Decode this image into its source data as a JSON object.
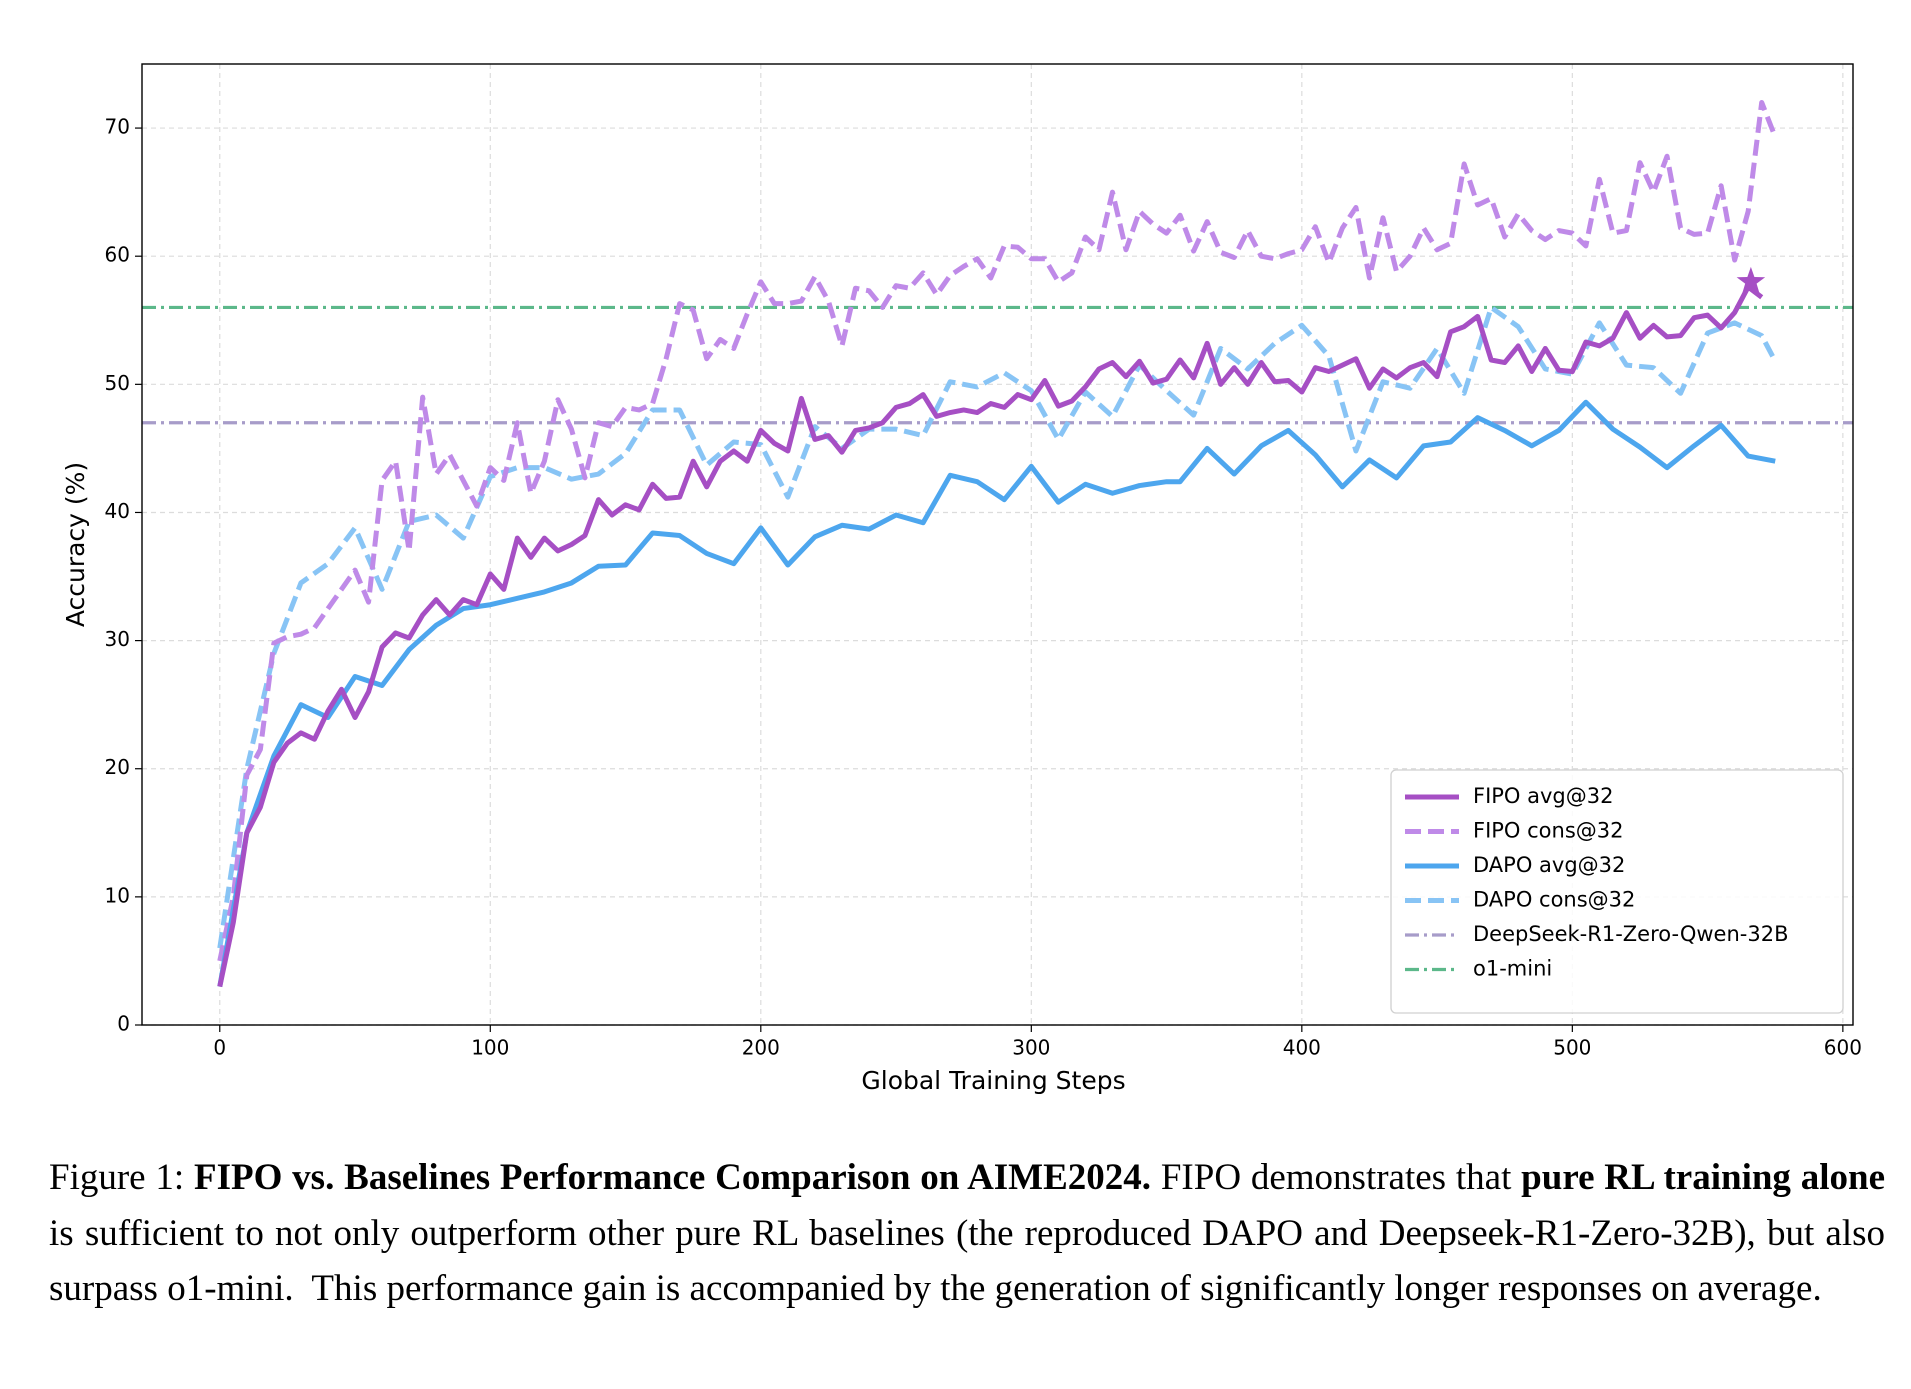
{
  "chart_data": {
    "type": "line",
    "x_label": "Global Training Steps",
    "y_label": "Accuracy (%)",
    "xlim": [
      -28.75,
      603.75
    ],
    "ylim": [
      0,
      75
    ],
    "xticks": [
      0,
      100,
      200,
      300,
      400,
      500,
      600
    ],
    "yticks": [
      0,
      10,
      20,
      30,
      40,
      50,
      60,
      70
    ],
    "grid": true,
    "legend": "lower right",
    "series": [
      {
        "name": "FIPO avg@32",
        "color": "#a64fc4",
        "style": "solid",
        "x": [
          0,
          5,
          10,
          15,
          20,
          25,
          30,
          35,
          40,
          45,
          50,
          55,
          60,
          65,
          70,
          75,
          80,
          85,
          90,
          95,
          100,
          105,
          110,
          115,
          120,
          125,
          130,
          135,
          140,
          145,
          150,
          155,
          160,
          165,
          170,
          175,
          180,
          185,
          190,
          195,
          200,
          205,
          210,
          215,
          220,
          225,
          230,
          235,
          240,
          245,
          250,
          255,
          260,
          265,
          270,
          275,
          280,
          285,
          290,
          295,
          300,
          305,
          310,
          315,
          320,
          325,
          330,
          335,
          340,
          345,
          350,
          355,
          360,
          365,
          370,
          375,
          380,
          385,
          390,
          395,
          400,
          405,
          410,
          415,
          420,
          425,
          430,
          435,
          440,
          445,
          450,
          455,
          460,
          465,
          470,
          475,
          480,
          485,
          490,
          495,
          500,
          505,
          510,
          515,
          520,
          525,
          530,
          535,
          540,
          545,
          550,
          555,
          560,
          565,
          570
        ],
        "values": [
          3,
          8,
          15,
          17,
          20.5,
          22,
          22.8,
          22.3,
          24.5,
          26.2,
          24,
          26,
          29.5,
          30.6,
          30.2,
          32,
          33.2,
          32,
          33.2,
          32.8,
          35.2,
          34,
          38,
          36.5,
          38,
          37,
          37.5,
          38.2,
          41,
          39.8,
          40.6,
          40.2,
          42.2,
          41.1,
          41.2,
          44,
          42,
          44,
          44.8,
          44,
          46.4,
          45.4,
          44.8,
          48.9,
          45.7,
          46,
          44.7,
          46.4,
          46.6,
          47,
          48.2,
          48.5,
          49.2,
          47.5,
          47.8,
          48,
          47.8,
          48.5,
          48.2,
          49.2,
          48.8,
          50.3,
          48.3,
          48.7,
          49.8,
          51.2,
          51.7,
          50.6,
          51.8,
          50.1,
          50.4,
          51.9,
          50.5,
          53.2,
          50,
          51.3,
          50,
          51.7,
          50.2,
          50.3,
          49.4,
          51.3,
          51,
          51.5,
          52,
          49.7,
          51.2,
          50.5,
          51.3,
          51.7,
          50.6,
          54.1,
          54.5,
          55.3,
          51.9,
          51.7,
          53,
          51,
          52.8,
          51.1,
          51,
          53.3,
          53,
          53.6,
          55.6,
          53.6,
          54.6,
          53.7,
          53.8,
          55.2,
          55.4,
          54.4,
          55.6,
          57.6,
          56.8
        ]
      },
      {
        "name": "FIPO cons@32",
        "color": "#bf8ae8",
        "style": "dashed",
        "x": [
          0,
          5,
          10,
          15,
          20,
          25,
          30,
          35,
          40,
          45,
          50,
          55,
          60,
          65,
          70,
          75,
          80,
          85,
          90,
          95,
          100,
          105,
          110,
          115,
          120,
          125,
          130,
          135,
          140,
          145,
          150,
          155,
          160,
          165,
          170,
          175,
          180,
          185,
          190,
          195,
          200,
          205,
          210,
          215,
          220,
          225,
          230,
          235,
          240,
          245,
          250,
          255,
          260,
          265,
          270,
          275,
          280,
          285,
          290,
          295,
          300,
          305,
          310,
          315,
          320,
          325,
          330,
          335,
          340,
          345,
          350,
          355,
          360,
          365,
          370,
          375,
          380,
          385,
          390,
          395,
          400,
          405,
          410,
          415,
          420,
          425,
          430,
          435,
          440,
          445,
          450,
          455,
          460,
          465,
          470,
          475,
          480,
          485,
          490,
          495,
          500,
          505,
          510,
          515,
          520,
          525,
          530,
          535,
          540,
          545,
          550,
          555,
          560,
          565,
          570,
          575
        ],
        "values": [
          5,
          10,
          19.5,
          21.5,
          29.8,
          30.3,
          30.5,
          31,
          32.5,
          34,
          35.5,
          33,
          42.5,
          44,
          37,
          49,
          43,
          44.5,
          42.5,
          40.5,
          43.5,
          42.5,
          47,
          41.5,
          44,
          48.8,
          46.5,
          42.7,
          47,
          46.7,
          48.2,
          48,
          48.5,
          52,
          56.3,
          55.8,
          52,
          53.5,
          52.8,
          55.5,
          58,
          56.3,
          56.3,
          56.5,
          58.4,
          56.5,
          53,
          57.5,
          57.3,
          56,
          57.7,
          57.5,
          58.7,
          57,
          58.5,
          59.2,
          59.8,
          58.3,
          60.8,
          60.7,
          59.8,
          59.8,
          58,
          58.7,
          61.5,
          60.5,
          65,
          60.5,
          63.5,
          62.5,
          61.8,
          63.2,
          60.4,
          62.7,
          60.3,
          59.9,
          62,
          60,
          59.8,
          60.2,
          60.5,
          62.3,
          59.5,
          62.2,
          63.8,
          58.3,
          63,
          58.8,
          60,
          62.2,
          60.5,
          61,
          67.2,
          64,
          64.5,
          61.5,
          63.3,
          62,
          61.3,
          62,
          61.8,
          60.8,
          66,
          61.8,
          62,
          67.3,
          65,
          67.8,
          62.2,
          61.7,
          61.8,
          65.5,
          59.7,
          63.5,
          72,
          69.3
        ]
      },
      {
        "name": "DAPO avg@32",
        "color": "#4da6ee",
        "style": "solid",
        "x": [
          0,
          10,
          20,
          30,
          40,
          50,
          60,
          70,
          80,
          90,
          100,
          110,
          120,
          130,
          140,
          150,
          160,
          170,
          180,
          190,
          200,
          210,
          220,
          230,
          240,
          250,
          260,
          270,
          280,
          290,
          300,
          310,
          320,
          330,
          340,
          350,
          355,
          365,
          375,
          385,
          395,
          405,
          415,
          425,
          435,
          445,
          455,
          465,
          475,
          485,
          495,
          505,
          515,
          525,
          535,
          545,
          555,
          565,
          575
        ],
        "values": [
          3,
          15,
          21,
          25,
          24,
          27.2,
          26.5,
          29.3,
          31.2,
          32.5,
          32.8,
          33.3,
          33.8,
          34.5,
          35.8,
          35.9,
          38.4,
          38.2,
          36.8,
          36,
          38.8,
          35.9,
          38.1,
          39,
          38.7,
          39.8,
          39.2,
          42.9,
          42.4,
          41,
          43.6,
          40.8,
          42.2,
          41.5,
          42.1,
          42.4,
          42.4,
          45,
          43,
          45.2,
          46.4,
          44.5,
          42,
          44.1,
          42.7,
          45.2,
          45.5,
          47.4,
          46.4,
          45.2,
          46.4,
          48.6,
          46.5,
          45.1,
          43.5,
          45.2,
          46.8,
          44.4,
          44
        ]
      },
      {
        "name": "DAPO cons@32",
        "color": "#88c4f5",
        "style": "dashed",
        "x": [
          0,
          10,
          20,
          30,
          40,
          50,
          60,
          70,
          80,
          90,
          100,
          110,
          120,
          130,
          140,
          150,
          160,
          170,
          180,
          190,
          200,
          210,
          220,
          230,
          240,
          250,
          260,
          270,
          280,
          290,
          300,
          310,
          320,
          330,
          340,
          350,
          360,
          370,
          380,
          390,
          400,
          410,
          420,
          430,
          440,
          450,
          460,
          470,
          480,
          490,
          500,
          510,
          520,
          530,
          540,
          550,
          560,
          570,
          575
        ],
        "values": [
          6,
          20,
          29,
          34.5,
          36,
          38.8,
          34,
          39.3,
          39.8,
          38,
          42.8,
          43.5,
          43.5,
          42.6,
          43,
          44.6,
          48,
          48,
          43.7,
          45.5,
          45.3,
          41.2,
          46.7,
          45,
          46.5,
          46.5,
          46,
          50.2,
          49.8,
          50.9,
          49.5,
          45.7,
          49.4,
          47.5,
          51.5,
          49.5,
          47.6,
          52.8,
          51.2,
          53.2,
          54.6,
          52.2,
          44.8,
          50.2,
          49.7,
          52.8,
          49.3,
          56,
          54.5,
          51.2,
          50.8,
          54.8,
          51.5,
          51.3,
          49.3,
          54,
          54.8,
          53.8,
          51.8
        ]
      }
    ],
    "reference_lines": [
      {
        "name": "DeepSeek-R1-Zero-Qwen-32B",
        "value": 47,
        "color": "#a79cc9"
      },
      {
        "name": "o1-mini",
        "value": 56,
        "color": "#5cb88a"
      }
    ],
    "star": {
      "x": 566,
      "y": 58,
      "color": "#a64fc4"
    }
  },
  "caption": [
    {
      "text": "Figure 1: ",
      "bold": false
    },
    {
      "text": "FIPO vs. Baselines Performance Comparison on AIME2024.",
      "bold": true
    },
    {
      "text": " FIPO demonstrates that ",
      "bold": false
    },
    {
      "text": "pure RL training alone",
      "bold": true
    },
    {
      "text": " is sufficient to not only outperform other pure RL baselines (the reproduced DAPO and Deepseek-R1-Zero-32B), but also surpass o1-mini.  This performance gain is accompanied by the generation of significantly longer responses on average.",
      "bold": false
    }
  ]
}
